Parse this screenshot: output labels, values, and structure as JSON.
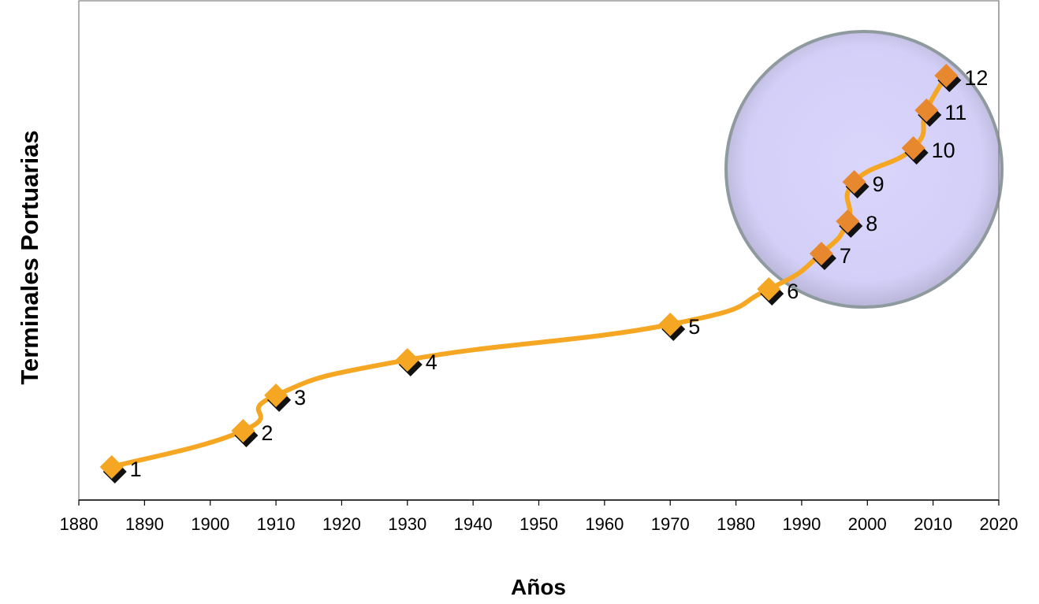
{
  "chart_data": {
    "type": "line",
    "xlabel": "Años",
    "ylabel": "Terminales Portuarias",
    "xlim": [
      1880,
      2020
    ],
    "x_ticks": [
      1880,
      1890,
      1900,
      1910,
      1920,
      1930,
      1940,
      1950,
      1960,
      1970,
      1980,
      1990,
      2000,
      2010,
      2020
    ],
    "grid": false,
    "legend": "none",
    "line_color": "#F5A623",
    "marker_color": "#F5A623",
    "marker_shadow_color": "#111111",
    "highlight_fill": "#D8D4FA",
    "highlight_stroke": "#8E9A9E",
    "series": [
      {
        "values": [
          {
            "x": 1885,
            "y": 1,
            "label": "1"
          },
          {
            "x": 1905,
            "y": 2,
            "label": "2"
          },
          {
            "x": 1910,
            "y": 3,
            "label": "3"
          },
          {
            "x": 1930,
            "y": 4,
            "label": "4"
          },
          {
            "x": 1970,
            "y": 5,
            "label": "5"
          },
          {
            "x": 1985,
            "y": 6,
            "label": "6"
          },
          {
            "x": 1993,
            "y": 7,
            "label": "7"
          },
          {
            "x": 1997,
            "y": 8,
            "label": "8"
          },
          {
            "x": 1998,
            "y": 9,
            "label": "9"
          },
          {
            "x": 2007,
            "y": 10,
            "label": "10"
          },
          {
            "x": 2009,
            "y": 11,
            "label": "11"
          },
          {
            "x": 2012,
            "y": 12,
            "label": "12"
          }
        ]
      }
    ]
  }
}
